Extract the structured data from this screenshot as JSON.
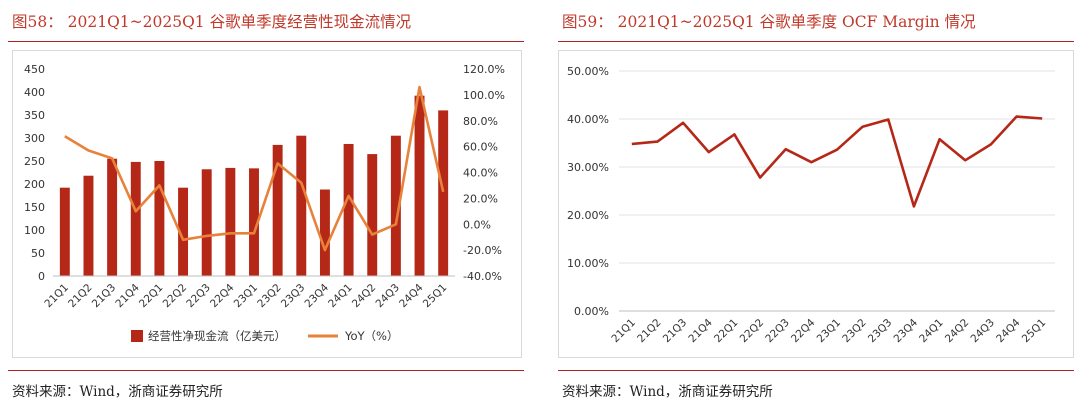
{
  "figures": [
    {
      "title": "图58： 2021Q1~2025Q1 谷歌单季度经营性现金流情况",
      "source": "资料来源：Wind，浙商证券研究所"
    },
    {
      "title": "图59： 2021Q1~2025Q1 谷歌单季度 OCF Margin 情况",
      "source": "资料来源：Wind，浙商证券研究所"
    }
  ],
  "chart_data": [
    {
      "type": "bar",
      "categories": [
        "21Q1",
        "21Q2",
        "21Q3",
        "21Q4",
        "22Q1",
        "22Q2",
        "22Q3",
        "22Q4",
        "23Q1",
        "23Q2",
        "23Q3",
        "23Q4",
        "24Q1",
        "24Q2",
        "24Q3",
        "24Q4",
        "25Q1"
      ],
      "y_left": {
        "min": 0,
        "max": 450,
        "ticks": [
          "0",
          "50",
          "100",
          "150",
          "200",
          "250",
          "300",
          "350",
          "400",
          "450"
        ]
      },
      "y_right": {
        "min": -40,
        "max": 120,
        "ticks": [
          "-40.0%",
          "-20.0%",
          "0.0%",
          "20.0%",
          "40.0%",
          "60.0%",
          "80.0%",
          "100.0%",
          "120.0%"
        ]
      },
      "series": [
        {
          "name": "经营性净现金流（亿美元）",
          "type": "bar",
          "axis": "left",
          "color": "#b52818",
          "values": [
            192,
            218,
            255,
            248,
            250,
            192,
            232,
            235,
            234,
            285,
            305,
            188,
            287,
            265,
            305,
            392,
            360
          ]
        },
        {
          "name": "YoY（%）",
          "type": "line",
          "axis": "right",
          "color": "#e8823a",
          "values": [
            68,
            57,
            51,
            10,
            30,
            -12,
            -9,
            -7,
            -7,
            47,
            32,
            -20,
            22,
            -8,
            0,
            106,
            25
          ]
        }
      ],
      "grid": false,
      "legend_position": "bottom"
    },
    {
      "type": "line",
      "categories": [
        "21Q1",
        "21Q2",
        "21Q3",
        "21Q4",
        "22Q1",
        "22Q2",
        "22Q3",
        "22Q4",
        "23Q1",
        "23Q2",
        "23Q3",
        "23Q4",
        "24Q1",
        "24Q2",
        "24Q3",
        "24Q4",
        "25Q1"
      ],
      "y": {
        "min": 0,
        "max": 50,
        "ticks": [
          "0.00%",
          "10.00%",
          "20.00%",
          "30.00%",
          "40.00%",
          "50.00%"
        ]
      },
      "series": [
        {
          "type": "line",
          "color": "#b52818",
          "values": [
            34.8,
            35.3,
            39.2,
            33.1,
            36.8,
            27.8,
            33.7,
            31.0,
            33.6,
            38.4,
            39.9,
            21.8,
            35.8,
            31.4,
            34.7,
            40.5,
            40.1
          ]
        }
      ],
      "grid": true,
      "legend_position": "none"
    }
  ]
}
